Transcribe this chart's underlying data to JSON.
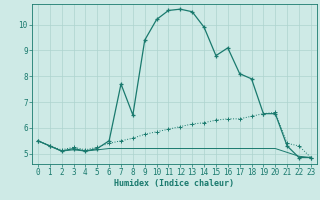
{
  "xlabel": "Humidex (Indice chaleur)",
  "background_color": "#ceeae6",
  "grid_color": "#aed4cf",
  "line_color": "#1a7a6e",
  "xlim": [
    -0.5,
    23.5
  ],
  "ylim": [
    4.6,
    10.8
  ],
  "xticks": [
    0,
    1,
    2,
    3,
    4,
    5,
    6,
    7,
    8,
    9,
    10,
    11,
    12,
    13,
    14,
    15,
    16,
    17,
    18,
    19,
    20,
    21,
    22,
    23
  ],
  "yticks": [
    5,
    6,
    7,
    8,
    9,
    10
  ],
  "line1_x": [
    0,
    1,
    2,
    3,
    4,
    5,
    6,
    7,
    8,
    9,
    10,
    11,
    12,
    13,
    14,
    15,
    16,
    17,
    18,
    19,
    20,
    21,
    22,
    23
  ],
  "line1_y": [
    5.5,
    5.3,
    5.1,
    5.2,
    5.1,
    5.2,
    5.5,
    7.7,
    6.5,
    9.4,
    10.2,
    10.55,
    10.6,
    10.5,
    9.9,
    8.8,
    9.1,
    8.1,
    7.9,
    6.55,
    6.55,
    5.3,
    4.85,
    4.85
  ],
  "line2_x": [
    0,
    1,
    2,
    3,
    4,
    5,
    6,
    7,
    8,
    9,
    10,
    11,
    12,
    13,
    14,
    15,
    16,
    17,
    18,
    19,
    20,
    21,
    22,
    23
  ],
  "line2_y": [
    5.5,
    5.3,
    5.1,
    5.15,
    5.1,
    5.15,
    5.2,
    5.2,
    5.2,
    5.2,
    5.2,
    5.2,
    5.2,
    5.2,
    5.2,
    5.2,
    5.2,
    5.2,
    5.2,
    5.2,
    5.2,
    5.05,
    4.9,
    4.85
  ],
  "line3_x": [
    0,
    1,
    2,
    3,
    4,
    5,
    6,
    7,
    8,
    9,
    10,
    11,
    12,
    13,
    14,
    15,
    16,
    17,
    18,
    19,
    20,
    21,
    22,
    23
  ],
  "line3_y": [
    5.5,
    5.3,
    5.15,
    5.25,
    5.15,
    5.25,
    5.4,
    5.5,
    5.6,
    5.75,
    5.85,
    5.95,
    6.05,
    6.15,
    6.2,
    6.3,
    6.35,
    6.35,
    6.45,
    6.55,
    6.6,
    5.4,
    5.3,
    4.85
  ]
}
